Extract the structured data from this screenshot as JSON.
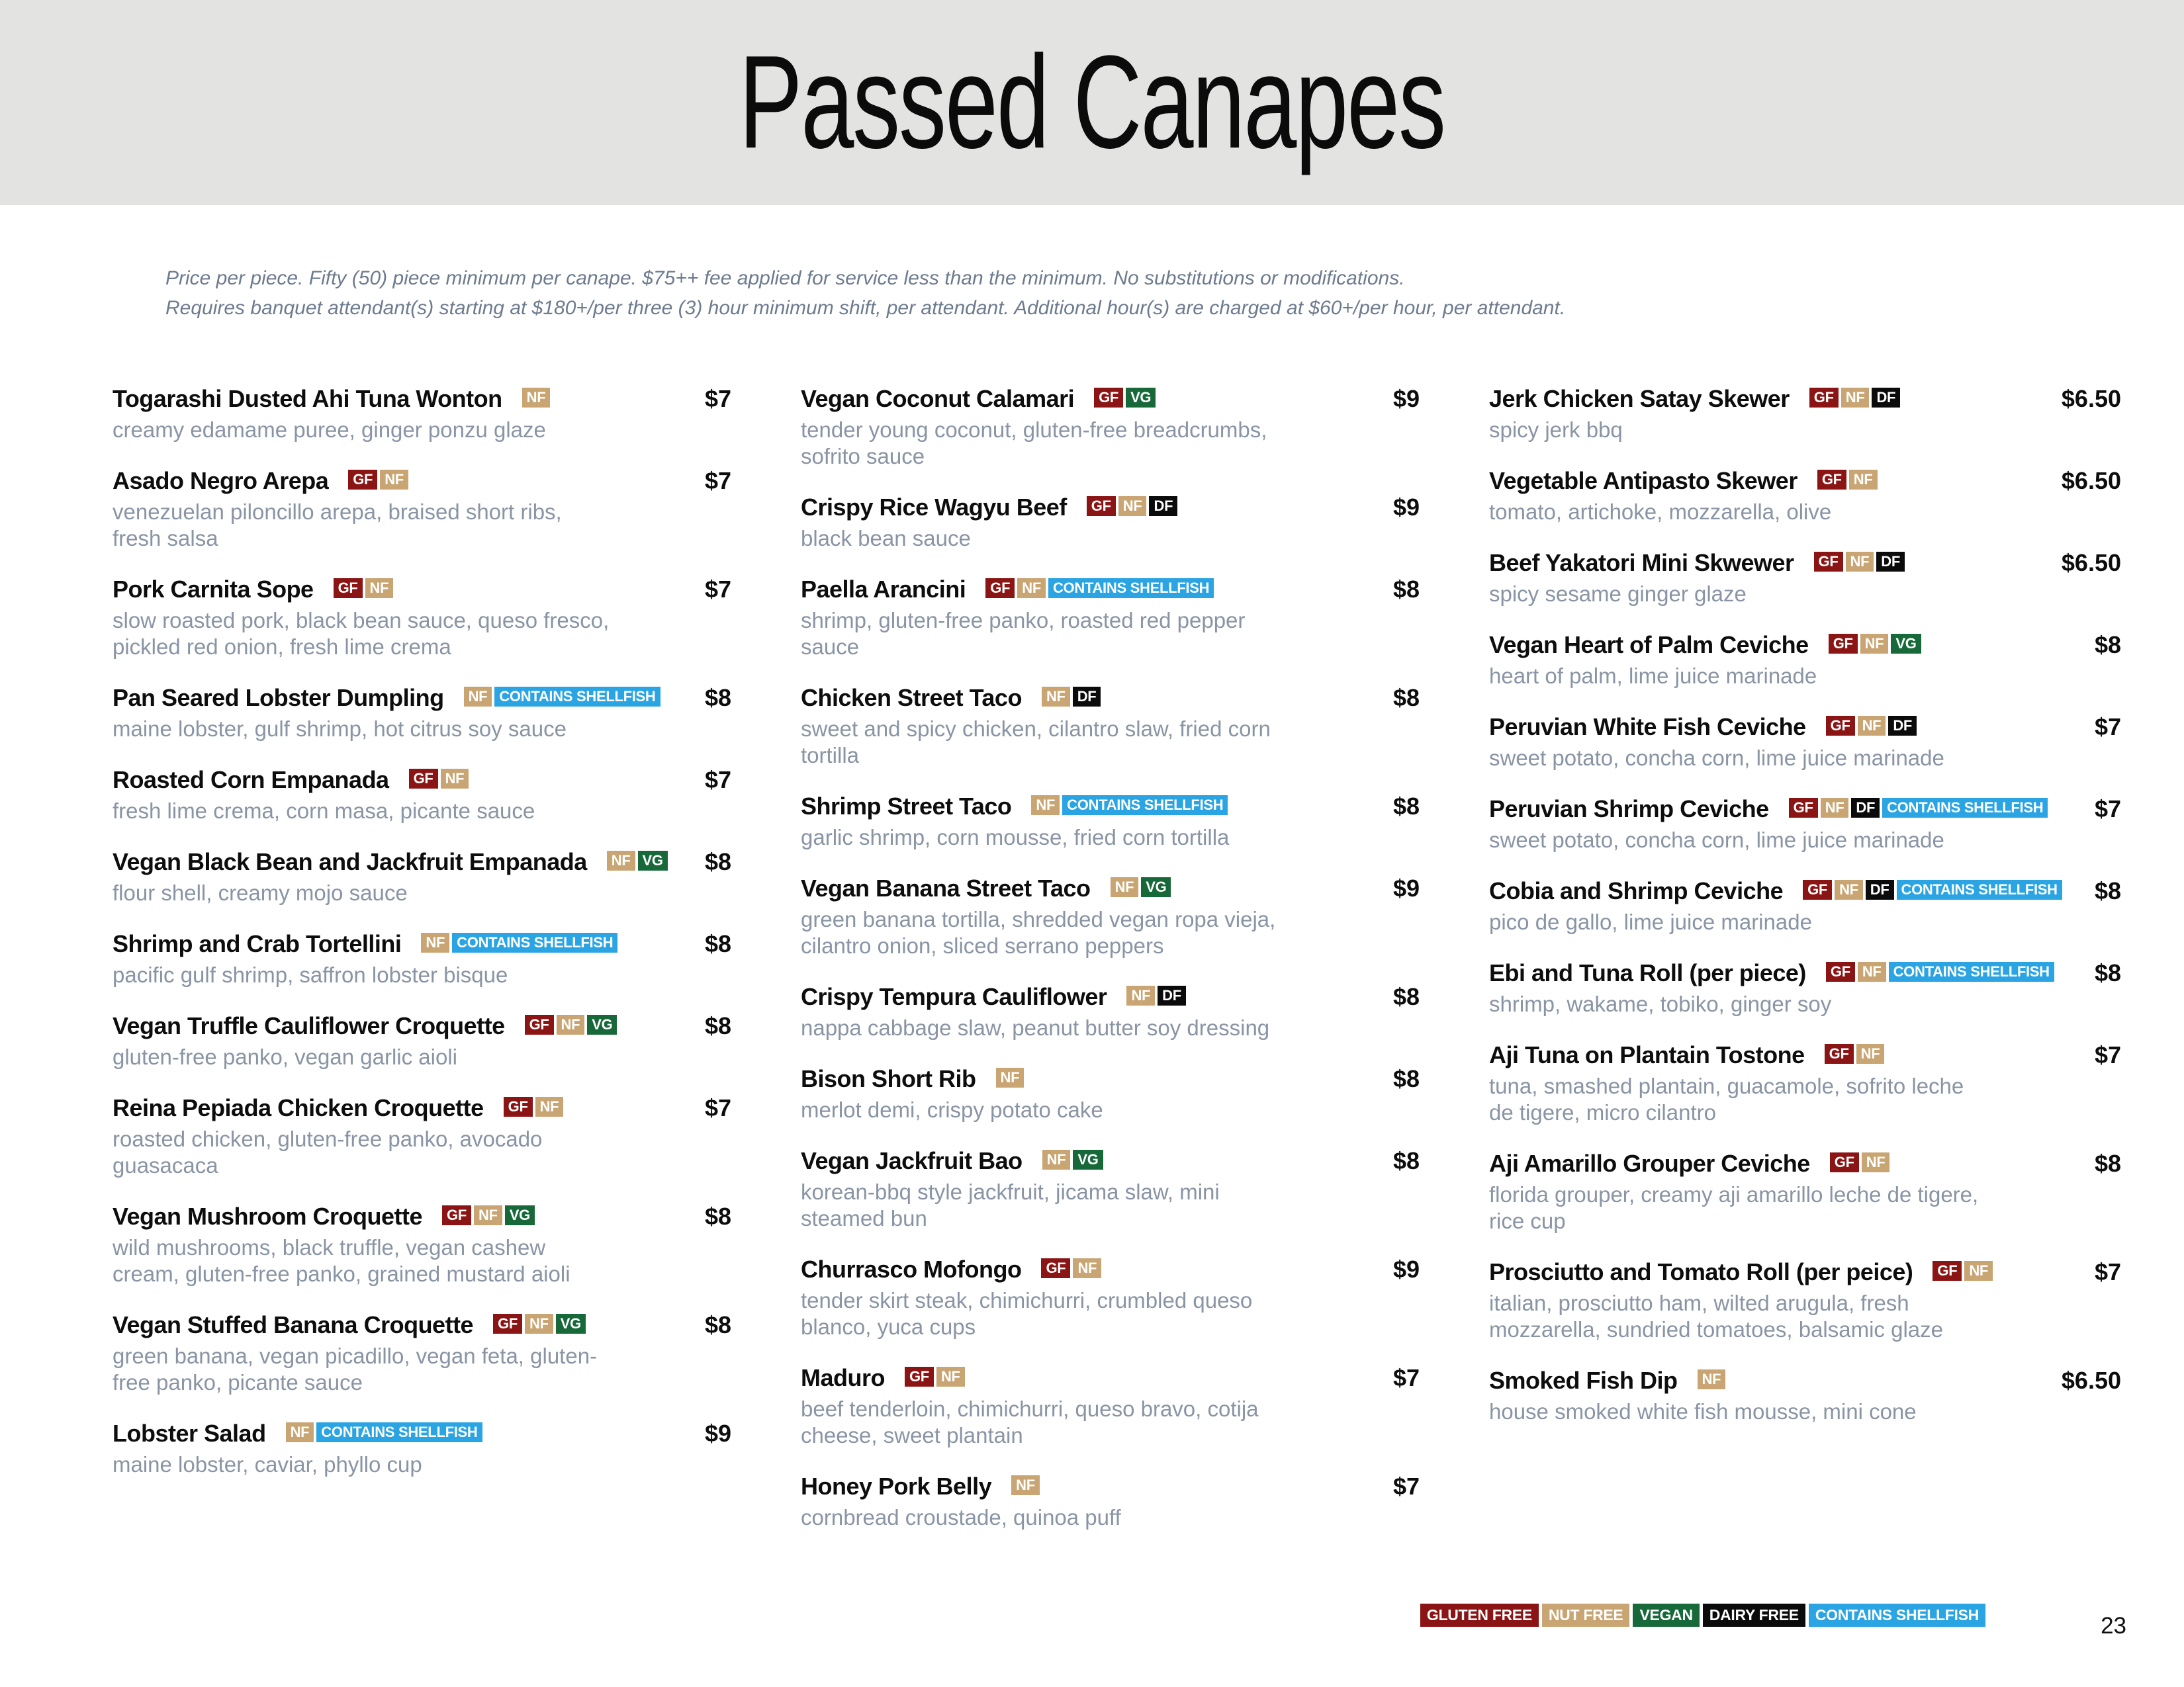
{
  "header": {
    "title": "Passed Canapes"
  },
  "disclaimer": {
    "line1": "Price per piece. Fifty (50) piece minimum per canape. $75++ fee applied for service less than the minimum. No substitutions or modifications.",
    "line2": "Requires banquet attendant(s) starting at $180+/per three (3) hour minimum shift, per attendant. Additional hour(s) are charged at $60+/per hour, per attendant."
  },
  "badge_labels": {
    "GF": "GF",
    "NF": "NF",
    "DF": "DF",
    "VG": "VG",
    "SH": "CONTAINS SHELLFISH"
  },
  "badge_colors": {
    "GF": "#8b1414",
    "NF": "#c8a572",
    "DF": "#0b0b0b",
    "VG": "#17693a",
    "SH": "#2aa4e2"
  },
  "columns": [
    [
      {
        "name": "Togarashi Dusted Ahi Tuna Wonton",
        "badges": [
          "NF"
        ],
        "price": "$7",
        "description": "creamy edamame puree, ginger ponzu glaze"
      },
      {
        "name": "Asado Negro Arepa",
        "badges": [
          "GF",
          "NF"
        ],
        "price": "$7",
        "description": "venezuelan piloncillo arepa, braised short ribs, fresh salsa"
      },
      {
        "name": "Pork Carnita Sope",
        "badges": [
          "GF",
          "NF"
        ],
        "price": "$7",
        "description": "slow roasted pork, black bean sauce, queso fresco, pickled red onion, fresh lime crema"
      },
      {
        "name": "Pan Seared Lobster Dumpling",
        "badges": [
          "NF",
          "SH"
        ],
        "price": "$8",
        "description": "maine lobster, gulf shrimp, hot citrus soy sauce"
      },
      {
        "name": "Roasted Corn Empanada",
        "badges": [
          "GF",
          "NF"
        ],
        "price": "$7",
        "description": "fresh lime crema, corn masa, picante sauce"
      },
      {
        "name": "Vegan Black Bean and Jackfruit Empanada",
        "badges": [
          "NF",
          "VG"
        ],
        "price": "$8",
        "description": "flour shell, creamy mojo sauce"
      },
      {
        "name": "Shrimp and Crab Tortellini",
        "badges": [
          "NF",
          "SH"
        ],
        "price": "$8",
        "description": "pacific gulf shrimp, saffron lobster bisque"
      },
      {
        "name": "Vegan Truffle Cauliflower Croquette",
        "badges": [
          "GF",
          "NF",
          "VG"
        ],
        "price": "$8",
        "description": "gluten-free panko, vegan garlic aioli"
      },
      {
        "name": "Reina Pepiada Chicken Croquette",
        "badges": [
          "GF",
          "NF"
        ],
        "price": "$7",
        "description": "roasted chicken, gluten-free panko, avocado guasacaca"
      },
      {
        "name": "Vegan Mushroom Croquette",
        "badges": [
          "GF",
          "NF",
          "VG"
        ],
        "price": "$8",
        "description": "wild mushrooms, black truffle, vegan cashew cream, gluten-free panko, grained mustard aioli"
      },
      {
        "name": "Vegan Stuffed Banana Croquette",
        "badges": [
          "GF",
          "NF",
          "VG"
        ],
        "price": "$8",
        "description": "green banana, vegan picadillo, vegan feta, gluten-free panko, picante sauce"
      },
      {
        "name": "Lobster Salad",
        "badges": [
          "NF",
          "SH"
        ],
        "price": "$9",
        "description": "maine lobster, caviar, phyllo cup"
      }
    ],
    [
      {
        "name": "Vegan Coconut Calamari",
        "badges": [
          "GF",
          "VG"
        ],
        "price": "$9",
        "description": "tender young coconut, gluten-free breadcrumbs, sofrito sauce"
      },
      {
        "name": "Crispy Rice Wagyu Beef",
        "badges": [
          "GF",
          "NF",
          "DF"
        ],
        "price": "$9",
        "description": "black bean sauce"
      },
      {
        "name": "Paella Arancini",
        "badges": [
          "GF",
          "NF",
          "SH"
        ],
        "price": "$8",
        "description": "shrimp, gluten-free panko, roasted red pepper sauce"
      },
      {
        "name": "Chicken Street Taco",
        "badges": [
          "NF",
          "DF"
        ],
        "price": "$8",
        "description": "sweet and spicy chicken, cilantro slaw, fried corn tortilla"
      },
      {
        "name": "Shrimp Street Taco",
        "badges": [
          "NF",
          "SH"
        ],
        "price": "$8",
        "description": "garlic shrimp, corn mousse, fried corn tortilla"
      },
      {
        "name": "Vegan Banana Street Taco",
        "badges": [
          "NF",
          "VG"
        ],
        "price": "$9",
        "description": "green banana tortilla, shredded vegan ropa vieja, cilantro onion, sliced serrano peppers"
      },
      {
        "name": "Crispy Tempura Cauliflower",
        "badges": [
          "NF",
          "DF"
        ],
        "price": "$8",
        "description": "nappa cabbage slaw, peanut butter soy dressing"
      },
      {
        "name": "Bison Short Rib",
        "badges": [
          "NF"
        ],
        "price": "$8",
        "description": "merlot demi, crispy potato cake"
      },
      {
        "name": "Vegan Jackfruit Bao",
        "badges": [
          "NF",
          "VG"
        ],
        "price": "$8",
        "description": "korean-bbq style jackfruit, jicama slaw, mini steamed bun"
      },
      {
        "name": "Churrasco Mofongo",
        "badges": [
          "GF",
          "NF"
        ],
        "price": "$9",
        "description": "tender skirt steak, chimichurri, crumbled queso blanco, yuca cups"
      },
      {
        "name": "Maduro",
        "badges": [
          "GF",
          "NF"
        ],
        "price": "$7",
        "description": "beef tenderloin, chimichurri, queso bravo, cotija cheese, sweet plantain"
      },
      {
        "name": "Honey Pork Belly",
        "badges": [
          "NF"
        ],
        "price": "$7",
        "description": "cornbread croustade, quinoa puff"
      }
    ],
    [
      {
        "name": "Jerk Chicken Satay Skewer",
        "badges": [
          "GF",
          "NF",
          "DF"
        ],
        "price": "$6.50",
        "description": "spicy jerk bbq"
      },
      {
        "name": "Vegetable Antipasto Skewer",
        "badges": [
          "GF",
          "NF"
        ],
        "price": "$6.50",
        "description": "tomato, artichoke, mozzarella, olive"
      },
      {
        "name": "Beef Yakatori Mini Skwewer",
        "badges": [
          "GF",
          "NF",
          "DF"
        ],
        "price": "$6.50",
        "description": "spicy sesame ginger glaze"
      },
      {
        "name": "Vegan Heart of Palm Ceviche",
        "badges": [
          "GF",
          "NF",
          "VG"
        ],
        "price": "$8",
        "description": "heart of palm, lime juice marinade"
      },
      {
        "name": "Peruvian White Fish Ceviche",
        "badges": [
          "GF",
          "NF",
          "DF"
        ],
        "price": "$7",
        "description": "sweet potato, concha corn, lime juice marinade"
      },
      {
        "name": "Peruvian Shrimp Ceviche",
        "badges": [
          "GF",
          "NF",
          "DF",
          "SH"
        ],
        "price": "$7",
        "description": "sweet potato, concha corn, lime juice marinade"
      },
      {
        "name": "Cobia and Shrimp Ceviche",
        "badges": [
          "GF",
          "NF",
          "DF",
          "SH"
        ],
        "price": "$8",
        "description": "pico de gallo, lime juice marinade"
      },
      {
        "name": "Ebi and Tuna Roll (per piece)",
        "badges": [
          "GF",
          "NF",
          "SH"
        ],
        "price": "$8",
        "description": "shrimp, wakame, tobiko, ginger soy"
      },
      {
        "name": "Aji Tuna on Plantain Tostone",
        "badges": [
          "GF",
          "NF"
        ],
        "price": "$7",
        "description": "tuna, smashed plantain, guacamole, sofrito leche de tigere, micro cilantro"
      },
      {
        "name": "Aji Amarillo Grouper Ceviche",
        "badges": [
          "GF",
          "NF"
        ],
        "price": "$8",
        "description": "florida grouper, creamy aji amarillo leche de tigere, rice cup"
      },
      {
        "name": "Prosciutto and Tomato Roll  (per peice)",
        "badges": [
          "GF",
          "NF"
        ],
        "price": "$7",
        "description": "italian, prosciutto ham, wilted arugula, fresh mozzarella, sundried tomatoes, balsamic glaze"
      },
      {
        "name": "Smoked Fish Dip",
        "badges": [
          "NF"
        ],
        "price": "$6.50",
        "description": "house smoked white fish mousse, mini cone"
      }
    ]
  ],
  "legend": [
    {
      "label": "GLUTEN FREE",
      "color": "#8b1414"
    },
    {
      "label": "NUT FREE",
      "color": "#c8a572"
    },
    {
      "label": "VEGAN",
      "color": "#17693a"
    },
    {
      "label": "DAIRY FREE",
      "color": "#0b0b0b"
    },
    {
      "label": "CONTAINS SHELLFISH",
      "color": "#2aa4e2"
    }
  ],
  "page_number": "23"
}
